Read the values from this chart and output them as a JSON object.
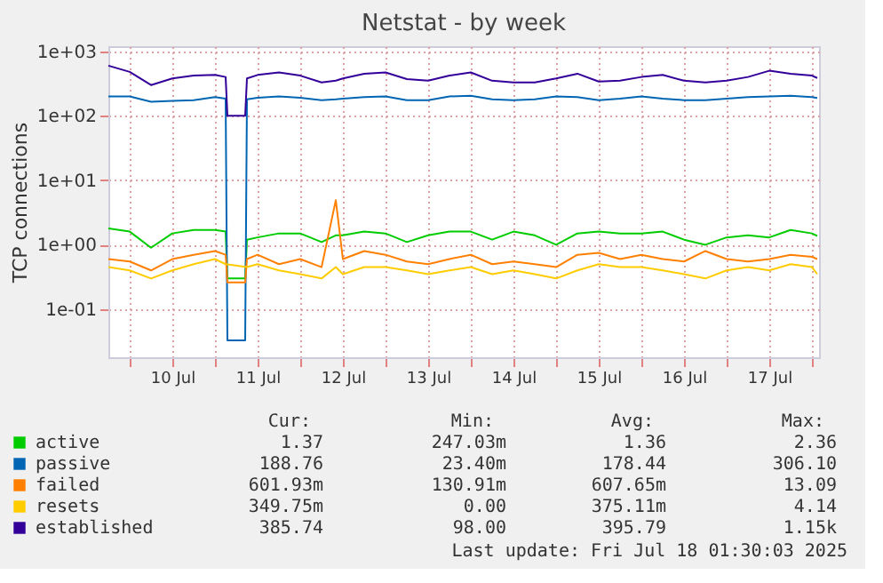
{
  "chart_data": {
    "type": "line",
    "title": "Netstat - by week",
    "ylabel": "TCP connections",
    "x": [
      "2025-07-09T18:00",
      "2025-07-10T00:00",
      "2025-07-10T06:00",
      "2025-07-10T12:00",
      "2025-07-10T18:00",
      "2025-07-11T00:00",
      "2025-07-11T03:00",
      "2025-07-11T03:30",
      "2025-07-11T08:30",
      "2025-07-11T09:00",
      "2025-07-11T12:00",
      "2025-07-11T18:00",
      "2025-07-12T00:00",
      "2025-07-12T06:00",
      "2025-07-12T10:00",
      "2025-07-12T12:00",
      "2025-07-12T18:00",
      "2025-07-13T00:00",
      "2025-07-13T06:00",
      "2025-07-13T12:00",
      "2025-07-13T18:00",
      "2025-07-14T00:00",
      "2025-07-14T06:00",
      "2025-07-14T12:00",
      "2025-07-14T18:00",
      "2025-07-15T00:00",
      "2025-07-15T06:00",
      "2025-07-15T12:00",
      "2025-07-15T18:00",
      "2025-07-16T00:00",
      "2025-07-16T06:00",
      "2025-07-16T12:00",
      "2025-07-16T18:00",
      "2025-07-17T00:00",
      "2025-07-17T06:00",
      "2025-07-17T12:00",
      "2025-07-17T18:00",
      "2025-07-18T00:00",
      "2025-07-18T01:30"
    ],
    "series": [
      {
        "name": "active",
        "color": "#00cc00",
        "values": [
          1.8,
          1.6,
          0.9,
          1.5,
          1.7,
          1.7,
          1.6,
          0.3,
          0.3,
          1.2,
          1.3,
          1.5,
          1.5,
          1.1,
          1.4,
          1.4,
          1.6,
          1.5,
          1.1,
          1.4,
          1.6,
          1.6,
          1.2,
          1.6,
          1.4,
          1.0,
          1.5,
          1.6,
          1.5,
          1.5,
          1.6,
          1.2,
          1.0,
          1.3,
          1.4,
          1.3,
          1.7,
          1.5,
          1.37
        ]
      },
      {
        "name": "passive",
        "color": "#0066b3",
        "values": [
          200,
          200,
          165,
          170,
          175,
          195,
          185,
          0.033,
          0.033,
          180,
          190,
          200,
          190,
          175,
          180,
          185,
          195,
          200,
          175,
          175,
          200,
          205,
          180,
          175,
          180,
          200,
          195,
          175,
          185,
          200,
          185,
          175,
          175,
          185,
          195,
          200,
          205,
          195,
          189
        ]
      },
      {
        "name": "failed",
        "color": "#ff8000",
        "values": [
          0.6,
          0.55,
          0.4,
          0.6,
          0.7,
          0.8,
          0.7,
          0.26,
          0.26,
          0.6,
          0.7,
          0.5,
          0.6,
          0.45,
          4.9,
          0.6,
          0.8,
          0.7,
          0.55,
          0.5,
          0.6,
          0.7,
          0.5,
          0.55,
          0.5,
          0.45,
          0.7,
          0.75,
          0.6,
          0.7,
          0.6,
          0.55,
          0.8,
          0.6,
          0.55,
          0.6,
          0.7,
          0.65,
          0.6
        ]
      },
      {
        "name": "resets",
        "color": "#ffcc00",
        "values": [
          0.45,
          0.4,
          0.3,
          0.4,
          0.5,
          0.6,
          0.5,
          null,
          null,
          0.45,
          0.5,
          0.4,
          0.35,
          0.3,
          0.45,
          0.35,
          0.45,
          0.45,
          0.4,
          0.35,
          0.4,
          0.45,
          0.35,
          0.4,
          0.35,
          0.3,
          0.4,
          0.5,
          0.45,
          0.45,
          0.4,
          0.35,
          0.3,
          0.4,
          0.45,
          0.4,
          0.5,
          0.45,
          0.35
        ]
      },
      {
        "name": "established",
        "color": "#330099",
        "values": [
          600,
          480,
          300,
          380,
          420,
          430,
          400,
          100,
          100,
          380,
          430,
          470,
          420,
          330,
          350,
          380,
          450,
          470,
          370,
          350,
          420,
          470,
          350,
          330,
          330,
          380,
          450,
          340,
          350,
          400,
          430,
          350,
          330,
          350,
          400,
          500,
          450,
          420,
          386
        ]
      }
    ],
    "xlim": [
      "2025-07-09T18:00",
      "2025-07-18T02:00"
    ],
    "xticks": [
      {
        "value": "2025-07-10T00:00",
        "label": null
      },
      {
        "value": "2025-07-10T12:00",
        "label": "10 Jul"
      },
      {
        "value": "2025-07-11T00:00",
        "label": null
      },
      {
        "value": "2025-07-11T12:00",
        "label": "11 Jul"
      },
      {
        "value": "2025-07-12T00:00",
        "label": null
      },
      {
        "value": "2025-07-12T12:00",
        "label": "12 Jul"
      },
      {
        "value": "2025-07-13T00:00",
        "label": null
      },
      {
        "value": "2025-07-13T12:00",
        "label": "13 Jul"
      },
      {
        "value": "2025-07-14T00:00",
        "label": null
      },
      {
        "value": "2025-07-14T12:00",
        "label": "14 Jul"
      },
      {
        "value": "2025-07-15T00:00",
        "label": null
      },
      {
        "value": "2025-07-15T12:00",
        "label": "15 Jul"
      },
      {
        "value": "2025-07-16T00:00",
        "label": null
      },
      {
        "value": "2025-07-16T12:00",
        "label": "16 Jul"
      },
      {
        "value": "2025-07-17T00:00",
        "label": null
      },
      {
        "value": "2025-07-17T12:00",
        "label": "17 Jul"
      },
      {
        "value": "2025-07-18T00:00",
        "label": null
      }
    ],
    "ylim": [
      0.018,
      1200
    ],
    "yticks": [
      {
        "value": 0.1,
        "label": "1e-01"
      },
      {
        "value": 1,
        "label": "1e+00"
      },
      {
        "value": 10,
        "label": "1e+01"
      },
      {
        "value": 100,
        "label": "1e+02"
      },
      {
        "value": 1000,
        "label": "1e+03"
      }
    ],
    "log": "y",
    "grid": true,
    "legend": "bottom",
    "line_style": "solid",
    "marker": "none",
    "annotations": [
      "Cur:",
      "Min:",
      "Avg:",
      "Max:",
      "1.37",
      "247.03m",
      "1.36",
      "2.36",
      "188.76",
      "23.40m",
      "178.44",
      "306.10",
      "601.93m",
      "130.91m",
      "607.65m",
      "13.09",
      "349.75m",
      "0.00",
      "375.11m",
      "4.14",
      "385.74",
      "98.00",
      "395.79",
      "1.15k",
      "Last update: Fri Jul 18 01:30:03 2025"
    ]
  }
}
